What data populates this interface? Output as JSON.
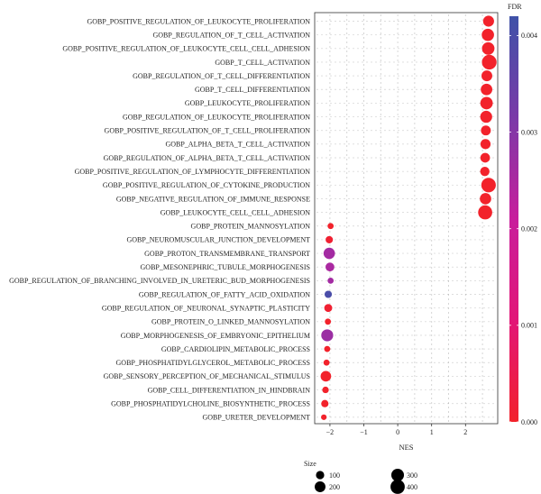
{
  "chart_data": {
    "type": "scatter",
    "title": "",
    "xlabel": "NES",
    "ylabel": "",
    "xlim": [
      -2.45,
      2.95
    ],
    "x_ticks": [
      -2,
      -1,
      0,
      1,
      2
    ],
    "grid": "dotted",
    "categories": [
      "GOBP_POSITIVE_REGULATION_OF_LEUKOCYTE_PROLIFERATION",
      "GOBP_REGULATION_OF_T_CELL_ACTIVATION",
      "GOBP_POSITIVE_REGULATION_OF_LEUKOCYTE_CELL_CELL_ADHESION",
      "GOBP_T_CELL_ACTIVATION",
      "GOBP_REGULATION_OF_T_CELL_DIFFERENTIATION",
      "GOBP_T_CELL_DIFFERENTIATION",
      "GOBP_LEUKOCYTE_PROLIFERATION",
      "GOBP_REGULATION_OF_LEUKOCYTE_PROLIFERATION",
      "GOBP_POSITIVE_REGULATION_OF_T_CELL_PROLIFERATION",
      "GOBP_ALPHA_BETA_T_CELL_ACTIVATION",
      "GOBP_REGULATION_OF_ALPHA_BETA_T_CELL_ACTIVATION",
      "GOBP_POSITIVE_REGULATION_OF_LYMPHOCYTE_DIFFERENTIATION",
      "GOBP_POSITIVE_REGULATION_OF_CYTOKINE_PRODUCTION",
      "GOBP_NEGATIVE_REGULATION_OF_IMMUNE_RESPONSE",
      "GOBP_LEUKOCYTE_CELL_CELL_ADHESION",
      "GOBP_PROTEIN_MANNOSYLATION",
      "GOBP_NEUROMUSCULAR_JUNCTION_DEVELOPMENT",
      "GOBP_PROTON_TRANSMEMBRANE_TRANSPORT",
      "GOBP_MESONEPHRIC_TUBULE_MORPHOGENESIS",
      "GOBP_REGULATION_OF_BRANCHING_INVOLVED_IN_URETERIC_BUD_MORPHOGENESIS",
      "GOBP_REGULATION_OF_FATTY_ACID_OXIDATION",
      "GOBP_REGULATION_OF_NEURONAL_SYNAPTIC_PLASTICITY",
      "GOBP_PROTEIN_O_LINKED_MANNOSYLATION",
      "GOBP_MORPHOGENESIS_OF_EMBRYONIC_EPITHELIUM",
      "GOBP_CARDIOLIPIN_METABOLIC_PROCESS",
      "GOBP_PHOSPHATIDYLGLYCEROL_METABOLIC_PROCESS",
      "GOBP_SENSORY_PERCEPTION_OF_MECHANICAL_STIMULUS",
      "GOBP_CELL_DIFFERENTIATION_IN_HINDBRAIN",
      "GOBP_PHOSPHATIDYLCHOLINE_BIOSYNTHETIC_PROCESS",
      "GOBP_URETER_DEVELOPMENT"
    ],
    "points": [
      {
        "nes": 2.68,
        "size": 210,
        "fdr": 0.0
      },
      {
        "nes": 2.66,
        "size": 280,
        "fdr": 0.0
      },
      {
        "nes": 2.67,
        "size": 290,
        "fdr": 0.0
      },
      {
        "nes": 2.7,
        "size": 430,
        "fdr": 0.0
      },
      {
        "nes": 2.63,
        "size": 200,
        "fdr": 0.0
      },
      {
        "nes": 2.62,
        "size": 240,
        "fdr": 0.0
      },
      {
        "nes": 2.62,
        "size": 290,
        "fdr": 0.0
      },
      {
        "nes": 2.61,
        "size": 260,
        "fdr": 0.0
      },
      {
        "nes": 2.6,
        "size": 160,
        "fdr": 0.0
      },
      {
        "nes": 2.59,
        "size": 170,
        "fdr": 0.0
      },
      {
        "nes": 2.58,
        "size": 150,
        "fdr": 0.0
      },
      {
        "nes": 2.57,
        "size": 140,
        "fdr": 0.0
      },
      {
        "nes": 2.68,
        "size": 420,
        "fdr": 0.0
      },
      {
        "nes": 2.59,
        "size": 230,
        "fdr": 0.0
      },
      {
        "nes": 2.58,
        "size": 390,
        "fdr": 0.0
      },
      {
        "nes": -1.98,
        "size": 40,
        "fdr": 0.0
      },
      {
        "nes": -2.02,
        "size": 70,
        "fdr": 0.0001
      },
      {
        "nes": -2.02,
        "size": 230,
        "fdr": 0.0026
      },
      {
        "nes": -2.0,
        "size": 120,
        "fdr": 0.0025
      },
      {
        "nes": -1.98,
        "size": 40,
        "fdr": 0.0026
      },
      {
        "nes": -2.05,
        "size": 70,
        "fdr": 0.004
      },
      {
        "nes": -2.05,
        "size": 90,
        "fdr": 0.0001
      },
      {
        "nes": -2.06,
        "size": 40,
        "fdr": 0.0
      },
      {
        "nes": -2.08,
        "size": 260,
        "fdr": 0.0027
      },
      {
        "nes": -2.08,
        "size": 40,
        "fdr": 0.0
      },
      {
        "nes": -2.1,
        "size": 40,
        "fdr": 0.0
      },
      {
        "nes": -2.12,
        "size": 190,
        "fdr": 0.0
      },
      {
        "nes": -2.13,
        "size": 50,
        "fdr": 0.0
      },
      {
        "nes": -2.15,
        "size": 70,
        "fdr": 0.0
      },
      {
        "nes": -2.18,
        "size": 30,
        "fdr": 0.0
      }
    ],
    "color_legend": {
      "title": "FDR",
      "range": [
        0.0,
        0.0042
      ],
      "ticks": [
        "0.000",
        "0.001",
        "0.002",
        "0.003",
        "0.004"
      ],
      "tick_values": [
        0.0,
        0.001,
        0.002,
        0.003,
        0.004
      ],
      "colors": [
        "#f2222b",
        "#e21677",
        "#c81e9c",
        "#7a3aa8",
        "#3f52a8"
      ]
    },
    "size_legend": {
      "title": "Size",
      "values": [
        100,
        200,
        300,
        400
      ],
      "labels": [
        "100",
        "200",
        "300",
        "400"
      ]
    }
  }
}
